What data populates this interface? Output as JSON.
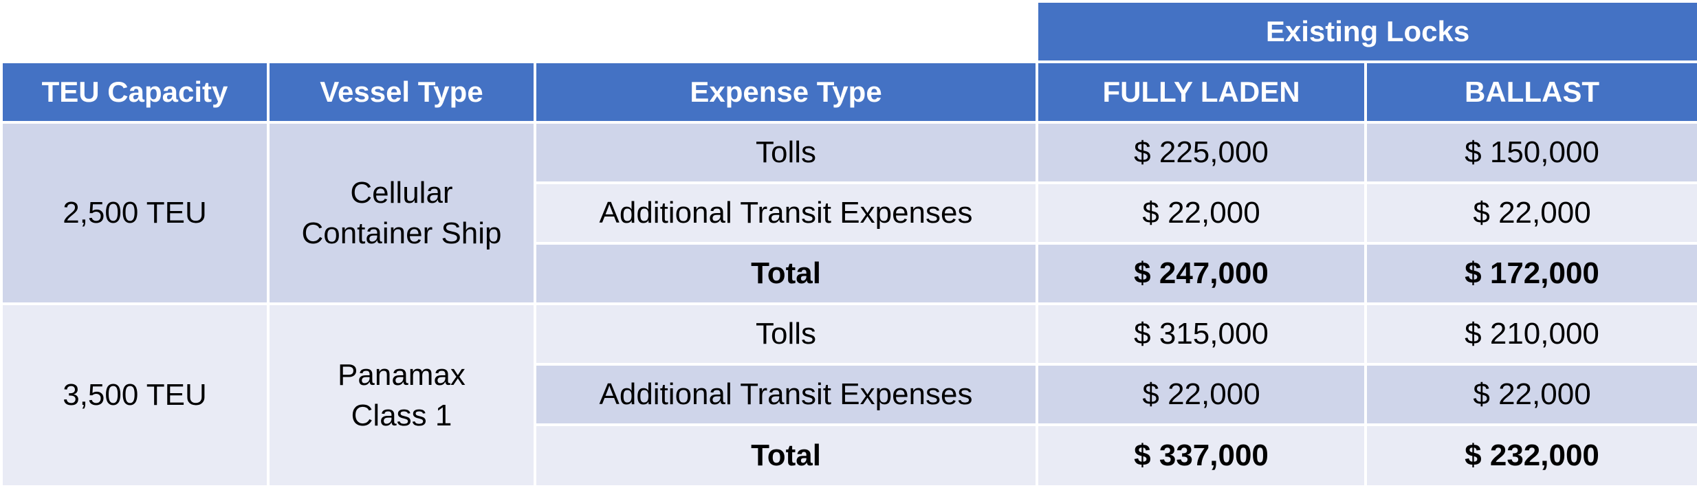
{
  "table": {
    "super_header": "Existing Locks",
    "columns": [
      "TEU Capacity",
      "Vessel Type",
      "Expense Type",
      "FULLY LADEN",
      "BALLAST"
    ],
    "groups": [
      {
        "teu_capacity": "2,500 TEU",
        "vessel_type_line1": "Cellular",
        "vessel_type_line2": "Container Ship",
        "rows": [
          {
            "expense": "Tolls",
            "fully_laden": "$ 225,000",
            "ballast": "$ 150,000"
          },
          {
            "expense": "Additional Transit Expenses",
            "fully_laden": "$ 22,000",
            "ballast": "$ 22,000"
          },
          {
            "expense": "Total",
            "fully_laden": "$ 247,000",
            "ballast": "$ 172,000"
          }
        ]
      },
      {
        "teu_capacity": "3,500 TEU",
        "vessel_type_line1": "Panamax",
        "vessel_type_line2": "Class 1",
        "rows": [
          {
            "expense": "Tolls",
            "fully_laden": "$ 315,000",
            "ballast": "$ 210,000"
          },
          {
            "expense": "Additional Transit Expenses",
            "fully_laden": "$ 22,000",
            "ballast": "$ 22,000"
          },
          {
            "expense": "Total",
            "fully_laden": "$ 337,000",
            "ballast": "$ 232,000"
          }
        ]
      }
    ]
  },
  "colors": {
    "header_blue": "#4472c4",
    "row_dark": "#cfd5ea",
    "row_light": "#e9ebf5"
  }
}
